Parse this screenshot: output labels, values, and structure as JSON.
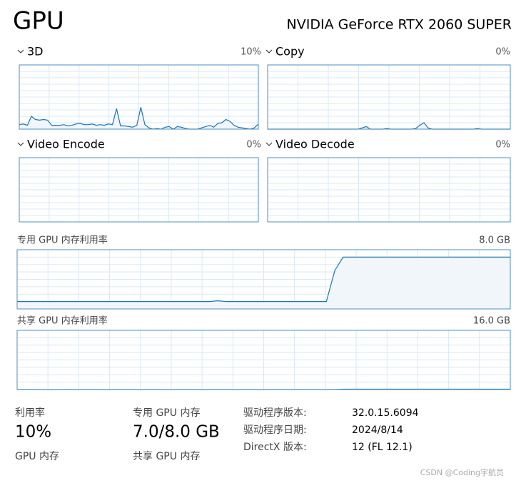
{
  "header": {
    "title": "GPU",
    "device": "NVIDIA GeForce RTX 2060 SUPER"
  },
  "graphs": [
    {
      "label": "3D",
      "reading": "10%",
      "ylim": [
        0,
        100
      ],
      "values": [
        7,
        8,
        6,
        20,
        15,
        14,
        15,
        14,
        6,
        6,
        6,
        7,
        5,
        6,
        8,
        9,
        7,
        7,
        8,
        6,
        7,
        6,
        8,
        7,
        32,
        5,
        5,
        4,
        3,
        6,
        34,
        7,
        2,
        0,
        1,
        0,
        3,
        4,
        0,
        4,
        3,
        1,
        0,
        0,
        0,
        2,
        4,
        6,
        3,
        9,
        10,
        15,
        12,
        6,
        3,
        2,
        1,
        0,
        2,
        8
      ]
    },
    {
      "label": "Copy",
      "reading": "0%",
      "ylim": [
        0,
        100
      ],
      "values": [
        0,
        0,
        0,
        0,
        0,
        0,
        0,
        0,
        0,
        0,
        0,
        0,
        0,
        0,
        0,
        0,
        0,
        0,
        0,
        0,
        0,
        0,
        0,
        2,
        4,
        0,
        0,
        0,
        0,
        1,
        0,
        0,
        0,
        0,
        0,
        0,
        1,
        6,
        10,
        2,
        0,
        0,
        0,
        0,
        0,
        0,
        0,
        0,
        0,
        0,
        0,
        1,
        0,
        0,
        0,
        0,
        0,
        0,
        0,
        0
      ]
    },
    {
      "label": "Video Encode",
      "reading": "0%"
    },
    {
      "label": "Video Decode",
      "reading": "0%"
    }
  ],
  "memory_graphs": [
    {
      "label": "专用 GPU 内存利用率",
      "max_label": "8.0 GB",
      "ylim": [
        0,
        8
      ],
      "values": [
        1.0,
        1.0,
        1.0,
        1.0,
        1.0,
        1.0,
        1.0,
        1.0,
        1.0,
        1.0,
        1.0,
        1.0,
        1.0,
        1.0,
        1.0,
        1.0,
        1.0,
        1.0,
        1.0,
        1.0,
        1.0,
        1.0,
        1.0,
        1.0,
        1.1,
        1.0,
        1.0,
        1.0,
        1.0,
        1.0,
        1.0,
        1.0,
        1.0,
        1.0,
        1.0,
        1.0,
        1.0,
        1.0,
        5.2,
        7.0,
        7.0,
        7.0,
        7.0,
        7.0,
        7.0,
        7.0,
        7.0,
        7.0,
        7.0,
        7.0,
        7.0,
        7.0,
        7.0,
        7.0,
        7.0,
        7.0,
        7.0,
        7.0,
        7.0,
        7.0
      ]
    },
    {
      "label": "共享 GPU 内存利用率",
      "max_label": "16.0 GB",
      "ylim": [
        0,
        16
      ],
      "values": [
        0,
        0,
        0,
        0,
        0,
        0,
        0,
        0,
        0,
        0,
        0,
        0,
        0,
        0,
        0,
        0,
        0,
        0,
        0,
        0,
        0,
        0,
        0,
        0,
        0,
        0,
        0,
        0,
        0,
        0,
        0,
        0,
        0,
        0,
        0,
        0,
        0,
        0,
        0,
        0.1,
        0.1,
        0.1,
        0.1,
        0.1,
        0.1,
        0.1,
        0.1,
        0.1,
        0.1,
        0.1,
        0.1,
        0.1,
        0.1,
        0.1,
        0.1,
        0.1,
        0.1,
        0.1,
        0.1,
        0.1
      ]
    }
  ],
  "stats": [
    {
      "label": "利用率",
      "value": "10%"
    },
    {
      "label": "专用 GPU 内存",
      "value": "7.0/8.0 GB"
    },
    {
      "label": "GPU 内存"
    },
    {
      "label": "共享 GPU 内存"
    }
  ],
  "details": [
    {
      "label": "驱动程序版本:",
      "value": "32.0.15.6094"
    },
    {
      "label": "驱动程序日期:",
      "value": "2024/8/14"
    },
    {
      "label": "DirectX 版本:",
      "value": "12 (FL 12.1)"
    }
  ],
  "watermark": "CSDN @Coding宇航员"
}
